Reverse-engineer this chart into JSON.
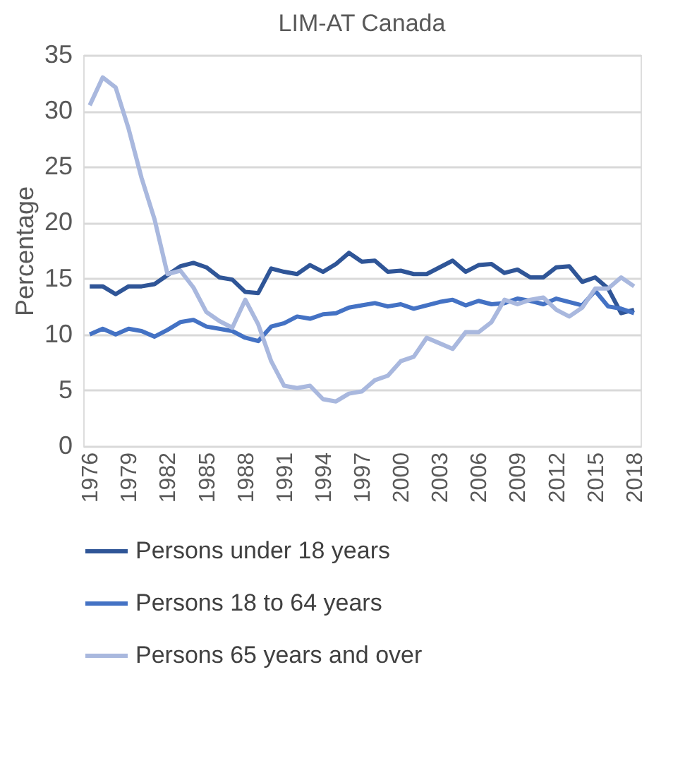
{
  "chart_data": {
    "type": "line",
    "title": "LIM-AT Canada",
    "ylabel": "Percentage",
    "categories": [
      "1976",
      null,
      null,
      "1979",
      null,
      null,
      "1982",
      null,
      null,
      "1985",
      null,
      null,
      "1988",
      null,
      null,
      "1991",
      null,
      null,
      "1994",
      null,
      null,
      "1997",
      null,
      null,
      "2000",
      null,
      null,
      "2003",
      null,
      null,
      "2006",
      null,
      null,
      "2009",
      null,
      null,
      "2012",
      null,
      null,
      "2015",
      null,
      null,
      "2018"
    ],
    "series": [
      {
        "name": "Persons under 18 years",
        "color": "#2f5597",
        "values": [
          14.3,
          14.3,
          13.6,
          14.3,
          14.3,
          14.5,
          15.3,
          16.1,
          16.4,
          16.0,
          15.1,
          14.9,
          13.8,
          13.7,
          15.9,
          15.6,
          15.4,
          16.2,
          15.6,
          16.3,
          17.3,
          16.5,
          16.6,
          15.6,
          15.7,
          15.4,
          15.4,
          16.0,
          16.6,
          15.6,
          16.2,
          16.3,
          15.5,
          15.8,
          15.1,
          15.1,
          16.0,
          16.1,
          14.7,
          15.1,
          14.1,
          11.9,
          12.2
        ]
      },
      {
        "name": "Persons 18 to 64 years",
        "color": "#4472c4",
        "values": [
          10.0,
          10.5,
          10.0,
          10.5,
          10.3,
          9.8,
          10.4,
          11.1,
          11.3,
          10.7,
          10.5,
          10.3,
          9.7,
          9.4,
          10.7,
          11.0,
          11.6,
          11.4,
          11.8,
          11.9,
          12.4,
          12.6,
          12.8,
          12.5,
          12.7,
          12.3,
          12.6,
          12.9,
          13.1,
          12.6,
          13.0,
          12.7,
          12.8,
          13.2,
          13.0,
          12.7,
          13.2,
          12.9,
          12.6,
          13.9,
          12.5,
          12.3,
          11.9
        ]
      },
      {
        "name": "Persons 65 years and over",
        "color": "#a9b8de",
        "values": [
          30.5,
          33.0,
          32.1,
          28.4,
          24.0,
          20.3,
          15.4,
          15.7,
          14.2,
          12.0,
          11.2,
          10.6,
          13.1,
          10.9,
          7.6,
          5.4,
          5.2,
          5.4,
          4.2,
          4.0,
          4.7,
          4.9,
          5.9,
          6.3,
          7.6,
          8.0,
          9.7,
          9.2,
          8.7,
          10.2,
          10.2,
          11.1,
          13.1,
          12.7,
          13.1,
          13.3,
          12.2,
          11.6,
          12.4,
          14.1,
          14.1,
          15.1,
          14.3
        ]
      }
    ],
    "ylim": [
      0,
      35
    ],
    "yticks": [
      0,
      5,
      10,
      15,
      20,
      25,
      30,
      35
    ],
    "grid": "y",
    "legend": "bottom",
    "marker": "none",
    "line_style": "solid"
  }
}
